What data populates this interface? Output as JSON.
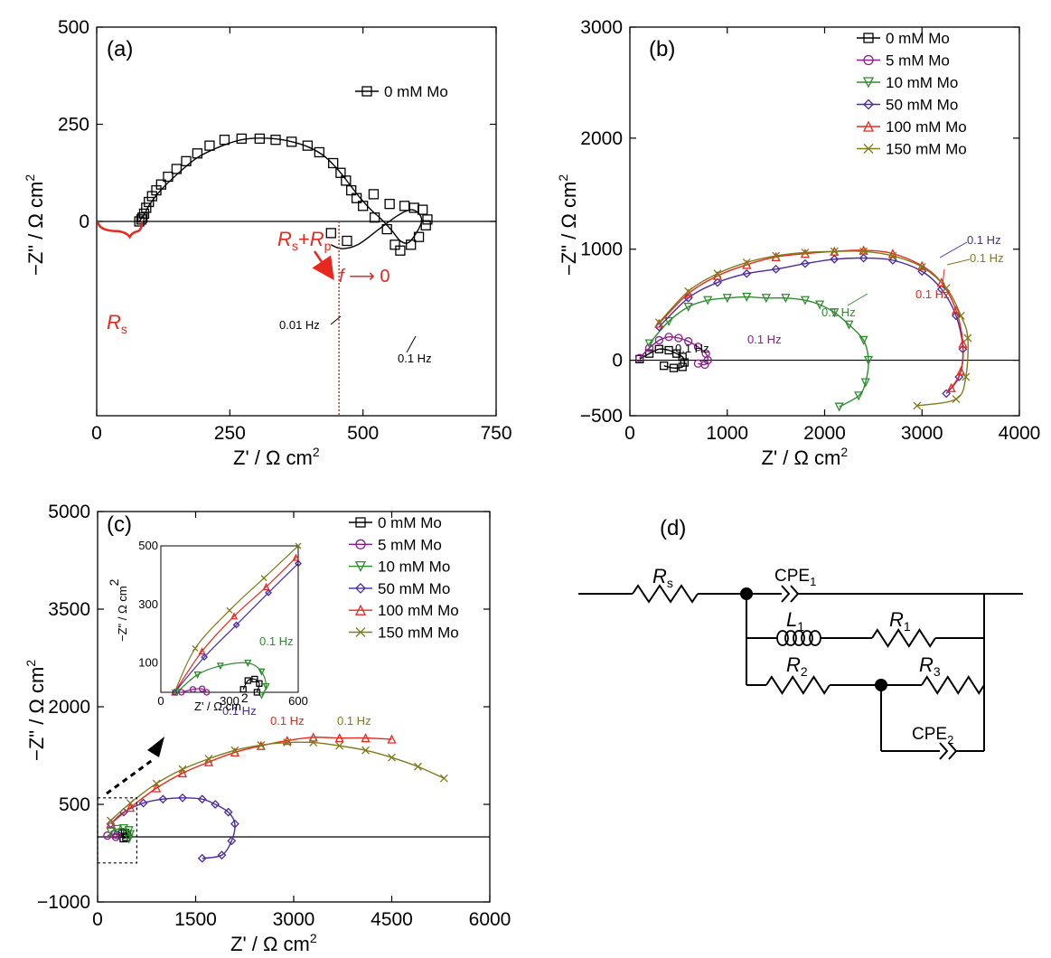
{
  "colors": {
    "0 mM Mo": "#000000",
    "5 mM Mo": "#8B1D8B",
    "10 mM Mo": "#2E8B2E",
    "50 mM Mo": "#4B2A9B",
    "100 mM Mo": "#E8281E",
    "150 mM Mo": "#7F7A1A",
    "annotation_red": "#E8281E"
  },
  "panels": {
    "a": {
      "label": "(a)",
      "xlabel": "Z' / Ω cm",
      "xlabel_sup": "2",
      "ylabel": "−Z\" / Ω cm",
      "ylabel_sup": "2",
      "legend": [
        "0 mM Mo"
      ],
      "rs_label": "R",
      "rs_sub": "s",
      "rsrp_label_r1": "R",
      "rsrp_label_s": "s",
      "rsrp_label_plus": "+",
      "rsrp_label_r2": "R",
      "rsrp_label_p": "p",
      "f_label": "f",
      "arrow_label": "⟶ 0",
      "annotations": [
        "0.01 Hz",
        "0.1 Hz"
      ]
    },
    "b": {
      "label": "(b)",
      "xlabel": "Z' / Ω cm",
      "xlabel_sup": "2",
      "ylabel": "−Z\" / Ω cm",
      "ylabel_sup": "2",
      "legend": [
        "0 mM Mo",
        "5 mM Mo",
        "10 mM Mo",
        "50 mM Mo",
        "100 mM Mo",
        "150 mM Mo"
      ],
      "annotations": [
        "0.1 Hz",
        "0.1 Hz",
        "0.1 Hz",
        "0.1 Hz",
        "0.1 Hz",
        "0.1 Hz"
      ]
    },
    "c": {
      "label": "(c)",
      "xlabel": "Z' / Ω cm",
      "xlabel_sup": "2",
      "ylabel": "−Z\" / Ω cm",
      "ylabel_sup": "2",
      "legend": [
        "0 mM Mo",
        "5 mM Mo",
        "10 mM Mo",
        "50 mM Mo",
        "100 mM Mo",
        "150 mM Mo"
      ],
      "annotations": [
        "0.1 Hz",
        "0.1 Hz",
        "0.1 Hz"
      ],
      "inset": {
        "xlabel": "Z' / Ω cm",
        "xlabel_sup": "2",
        "ylabel": "−Z\" / Ω cm",
        "ylabel_sup": "2",
        "annotation": "0.1 Hz"
      }
    },
    "d": {
      "label": "(d)",
      "components": {
        "rs": "R",
        "rs_sub": "s",
        "cpe1": "CPE",
        "cpe1_sub": "1",
        "l1": "L",
        "l1_sub": "1",
        "r1": "R",
        "r1_sub": "1",
        "r2": "R",
        "r2_sub": "2",
        "r3": "R",
        "r3_sub": "3",
        "cpe2": "CPE",
        "cpe2_sub": "2"
      }
    }
  },
  "chart_data": [
    {
      "panel": "a",
      "type": "scatter",
      "xlim": [
        0,
        750
      ],
      "ylim": [
        -500,
        500
      ],
      "xticks": [
        0,
        250,
        500,
        750
      ],
      "yticks": [
        0,
        250,
        500
      ],
      "series": [
        {
          "name": "0 mM Mo",
          "color": "#000000",
          "marker": "square",
          "points": [
            [
              80,
              0
            ],
            [
              84,
              5
            ],
            [
              86,
              10
            ],
            [
              89,
              20
            ],
            [
              93,
              35
            ],
            [
              98,
              50
            ],
            [
              104,
              65
            ],
            [
              112,
              80
            ],
            [
              121,
              95
            ],
            [
              134,
              115
            ],
            [
              150,
              135
            ],
            [
              168,
              155
            ],
            [
              189,
              175
            ],
            [
              212,
              195
            ],
            [
              240,
              210
            ],
            [
              272,
              213
            ],
            [
              306,
              213
            ],
            [
              336,
              210
            ],
            [
              366,
              205
            ],
            [
              396,
              195
            ],
            [
              418,
              178
            ],
            [
              444,
              150
            ],
            [
              458,
              125
            ],
            [
              468,
              105
            ],
            [
              478,
              80
            ],
            [
              488,
              60
            ],
            [
              500,
              40
            ],
            [
              522,
              10
            ],
            [
              545,
              -20
            ],
            [
              560,
              -60
            ],
            [
              570,
              -75
            ],
            [
              590,
              -60
            ],
            [
              605,
              -40
            ],
            [
              618,
              -10
            ],
            [
              621,
              5
            ],
            [
              612,
              30
            ],
            [
              596,
              35
            ],
            [
              578,
              40
            ],
            [
              550,
              45
            ],
            [
              520,
              70
            ],
            [
              470,
              -50
            ],
            [
              440,
              -30
            ]
          ]
        },
        {
          "name": "fit",
          "color": "#000000",
          "line": true,
          "points": [
            [
              80,
              0
            ],
            [
              90,
              20
            ],
            [
              100,
              45
            ],
            [
              120,
              80
            ],
            [
              150,
              120
            ],
            [
              190,
              165
            ],
            [
              240,
              197
            ],
            [
              280,
              212
            ],
            [
              320,
              214
            ],
            [
              360,
              207
            ],
            [
              400,
              190
            ],
            [
              430,
              165
            ],
            [
              455,
              130
            ],
            [
              475,
              95
            ],
            [
              495,
              60
            ],
            [
              515,
              30
            ],
            [
              535,
              5
            ],
            [
              555,
              -25
            ],
            [
              570,
              -50
            ],
            [
              585,
              -55
            ],
            [
              600,
              -30
            ],
            [
              610,
              0
            ],
            [
              605,
              20
            ],
            [
              590,
              30
            ],
            [
              565,
              15
            ],
            [
              530,
              -20
            ],
            [
              490,
              -60
            ],
            [
              460,
              -70
            ],
            [
              440,
              -60
            ]
          ]
        }
      ]
    },
    {
      "panel": "b",
      "type": "scatter",
      "xlim": [
        0,
        4000
      ],
      "ylim": [
        -500,
        3000
      ],
      "xticks": [
        0,
        1000,
        2000,
        3000,
        4000
      ],
      "yticks": [
        -500,
        0,
        1000,
        2000,
        3000
      ],
      "series": [
        {
          "name": "0 mM Mo",
          "color": "#000000",
          "marker": "square",
          "points": [
            [
              100,
              10
            ],
            [
              200,
              60
            ],
            [
              300,
              100
            ],
            [
              400,
              90
            ],
            [
              480,
              60
            ],
            [
              540,
              30
            ],
            [
              560,
              -20
            ],
            [
              540,
              -60
            ],
            [
              450,
              -70
            ],
            [
              350,
              -50
            ]
          ]
        },
        {
          "name": "5 mM Mo",
          "color": "#8B1D8B",
          "marker": "circle",
          "points": [
            [
              100,
              20
            ],
            [
              200,
              110
            ],
            [
              300,
              180
            ],
            [
              400,
              210
            ],
            [
              500,
              200
            ],
            [
              600,
              170
            ],
            [
              700,
              120
            ],
            [
              780,
              60
            ],
            [
              800,
              0
            ],
            [
              770,
              -40
            ],
            [
              700,
              -30
            ]
          ]
        },
        {
          "name": "10 mM Mo",
          "color": "#2E8B2E",
          "marker": "tri-down",
          "points": [
            [
              200,
              150
            ],
            [
              400,
              350
            ],
            [
              600,
              480
            ],
            [
              800,
              540
            ],
            [
              1000,
              560
            ],
            [
              1200,
              570
            ],
            [
              1400,
              560
            ],
            [
              1600,
              560
            ],
            [
              1800,
              540
            ],
            [
              1950,
              500
            ],
            [
              2100,
              430
            ],
            [
              2250,
              320
            ],
            [
              2400,
              180
            ],
            [
              2450,
              0
            ],
            [
              2420,
              -200
            ],
            [
              2350,
              -320
            ],
            [
              2150,
              -420
            ]
          ]
        },
        {
          "name": "50 mM Mo",
          "color": "#4B2A9B",
          "marker": "diamond",
          "points": [
            [
              300,
              300
            ],
            [
              600,
              560
            ],
            [
              900,
              700
            ],
            [
              1200,
              780
            ],
            [
              1500,
              820
            ],
            [
              1800,
              870
            ],
            [
              2100,
              910
            ],
            [
              2400,
              920
            ],
            [
              2700,
              900
            ],
            [
              3000,
              800
            ],
            [
              3200,
              640
            ],
            [
              3350,
              400
            ],
            [
              3420,
              100
            ],
            [
              3380,
              -150
            ],
            [
              3250,
              -300
            ]
          ]
        },
        {
          "name": "100 mM Mo",
          "color": "#E8281E",
          "marker": "tri-up",
          "points": [
            [
              300,
              330
            ],
            [
              600,
              600
            ],
            [
              900,
              760
            ],
            [
              1200,
              860
            ],
            [
              1500,
              930
            ],
            [
              1800,
              960
            ],
            [
              2100,
              980
            ],
            [
              2400,
              990
            ],
            [
              2700,
              960
            ],
            [
              3000,
              850
            ],
            [
              3200,
              700
            ],
            [
              3350,
              450
            ],
            [
              3420,
              150
            ],
            [
              3400,
              -100
            ],
            [
              3300,
              -250
            ]
          ]
        },
        {
          "name": "150 mM Mo",
          "color": "#7F7A1A",
          "marker": "x",
          "points": [
            [
              300,
              340
            ],
            [
              600,
              620
            ],
            [
              900,
              780
            ],
            [
              1200,
              880
            ],
            [
              1500,
              940
            ],
            [
              1800,
              970
            ],
            [
              2100,
              980
            ],
            [
              2400,
              980
            ],
            [
              2700,
              940
            ],
            [
              3000,
              840
            ],
            [
              3250,
              650
            ],
            [
              3400,
              400
            ],
            [
              3470,
              200
            ],
            [
              3450,
              -150
            ],
            [
              3350,
              -350
            ],
            [
              2950,
              -410
            ]
          ]
        }
      ]
    },
    {
      "panel": "c",
      "type": "scatter",
      "xlim": [
        0,
        6000
      ],
      "ylim": [
        -1000,
        5000
      ],
      "xticks": [
        0,
        1500,
        3000,
        4500,
        6000
      ],
      "yticks": [
        -1000,
        500,
        2000,
        3500,
        5000
      ],
      "series": [
        {
          "name": "0 mM Mo",
          "color": "#000000",
          "marker": "square",
          "points": [
            [
              380,
              50
            ],
            [
              420,
              60
            ],
            [
              450,
              40
            ],
            [
              440,
              0
            ],
            [
              400,
              -20
            ]
          ]
        },
        {
          "name": "5 mM Mo",
          "color": "#8B1D8B",
          "marker": "circle",
          "points": [
            [
              150,
              20
            ],
            [
              250,
              40
            ],
            [
              300,
              30
            ],
            [
              280,
              0
            ]
          ]
        },
        {
          "name": "10 mM Mo",
          "color": "#2E8B2E",
          "marker": "tri-down",
          "points": [
            [
              200,
              80
            ],
            [
              300,
              120
            ],
            [
              400,
              130
            ],
            [
              480,
              100
            ],
            [
              500,
              40
            ],
            [
              480,
              -30
            ]
          ]
        },
        {
          "name": "50 mM Mo",
          "color": "#4B2A9B",
          "marker": "diamond",
          "points": [
            [
              200,
              200
            ],
            [
              400,
              380
            ],
            [
              700,
              520
            ],
            [
              1000,
              580
            ],
            [
              1300,
              600
            ],
            [
              1600,
              580
            ],
            [
              1800,
              500
            ],
            [
              2000,
              380
            ],
            [
              2100,
              200
            ],
            [
              2050,
              -60
            ],
            [
              1900,
              -280
            ],
            [
              1600,
              -330
            ]
          ]
        },
        {
          "name": "100 mM Mo",
          "color": "#E8281E",
          "marker": "tri-up",
          "points": [
            [
              200,
              200
            ],
            [
              500,
              450
            ],
            [
              900,
              750
            ],
            [
              1300,
              980
            ],
            [
              1700,
              1150
            ],
            [
              2100,
              1300
            ],
            [
              2500,
              1400
            ],
            [
              2900,
              1480
            ],
            [
              3300,
              1530
            ],
            [
              3700,
              1520
            ],
            [
              4100,
              1520
            ],
            [
              4500,
              1500
            ]
          ]
        },
        {
          "name": "150 mM Mo",
          "color": "#7F7A1A",
          "marker": "x",
          "points": [
            [
              200,
              250
            ],
            [
              500,
              520
            ],
            [
              900,
              820
            ],
            [
              1300,
              1040
            ],
            [
              1700,
              1200
            ],
            [
              2100,
              1330
            ],
            [
              2500,
              1410
            ],
            [
              2900,
              1450
            ],
            [
              3300,
              1450
            ],
            [
              3700,
              1400
            ],
            [
              4100,
              1330
            ],
            [
              4500,
              1220
            ],
            [
              4900,
              1080
            ],
            [
              5300,
              900
            ]
          ]
        }
      ]
    }
  ]
}
